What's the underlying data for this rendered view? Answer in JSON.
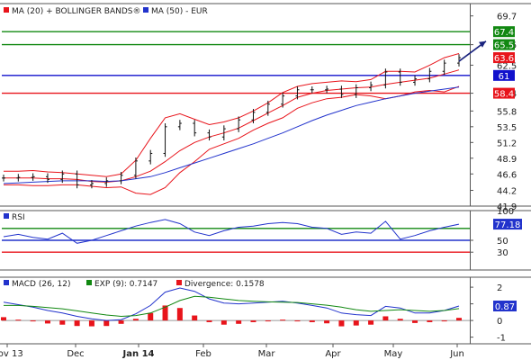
{
  "chart_data": [
    {
      "type": "line",
      "panel": "price",
      "legend": [
        {
          "label": "MA (20) + BOLLINGER BANDS®",
          "color": "#e8141b"
        },
        {
          "label": "MA (50) - EUR",
          "color": "#2233cc"
        }
      ],
      "yticks": [
        69.7,
        65.5,
        62.5,
        58.4,
        55.8,
        53.5,
        51.2,
        48.9,
        46.6,
        44.2,
        41.9
      ],
      "ylim": [
        41.9,
        71.5
      ],
      "levels": [
        {
          "value": 67.4,
          "label": "67.4",
          "color": "#118811"
        },
        {
          "value": 65.5,
          "label": "65.5",
          "color": "#118811"
        },
        {
          "value": 63.6,
          "label": "63.6",
          "color": "#e8141b",
          "kind": "last"
        },
        {
          "value": 61,
          "label": "61",
          "color": "#1111cc"
        },
        {
          "value": 58.4,
          "label": "58.4",
          "color": "#e8141b"
        }
      ],
      "x": [
        "2013-11-01",
        "2013-11-08",
        "2013-11-15",
        "2013-11-22",
        "2013-11-29",
        "2013-12-06",
        "2013-12-13",
        "2013-12-20",
        "2013-12-27",
        "2014-01-03",
        "2014-01-10",
        "2014-01-17",
        "2014-01-24",
        "2014-01-31",
        "2014-02-07",
        "2014-02-14",
        "2014-02-21",
        "2014-02-28",
        "2014-03-07",
        "2014-03-14",
        "2014-03-21",
        "2014-03-28",
        "2014-04-04",
        "2014-04-11",
        "2014-04-18",
        "2014-04-25",
        "2014-05-02",
        "2014-05-09",
        "2014-05-16",
        "2014-05-23",
        "2014-05-30",
        "2014-06-06"
      ],
      "series": [
        {
          "name": "Price",
          "values": [
            46.0,
            46.1,
            46.2,
            45.8,
            46.6,
            45.0,
            45.2,
            45.6,
            46.4,
            48.5,
            49.6,
            53.5,
            54.0,
            52.6,
            52.0,
            53.2,
            54.5,
            55.6,
            56.8,
            58.0,
            58.9,
            58.9,
            59.0,
            58.2,
            59.2,
            59.6,
            61.5,
            60.0,
            60.5,
            61.6,
            62.8,
            63.6
          ]
        },
        {
          "name": "MA (20)",
          "values": [
            46.0,
            46.0,
            46.0,
            45.9,
            45.9,
            45.8,
            45.5,
            45.4,
            45.6,
            46.2,
            47.0,
            48.4,
            50.0,
            51.2,
            52.0,
            52.6,
            53.3,
            54.4,
            55.5,
            56.6,
            57.8,
            58.4,
            58.8,
            59.0,
            59.2,
            59.3,
            59.7,
            60.0,
            60.3,
            60.6,
            61.2,
            61.8
          ]
        },
        {
          "name": "Upper band",
          "values": [
            47.0,
            47.0,
            47.1,
            46.9,
            46.8,
            46.6,
            46.4,
            46.2,
            46.6,
            48.6,
            51.8,
            54.8,
            55.4,
            54.6,
            53.8,
            54.2,
            54.8,
            55.8,
            57.0,
            58.5,
            59.4,
            59.8,
            60.0,
            60.2,
            60.1,
            60.4,
            61.6,
            61.6,
            61.5,
            62.5,
            63.6,
            64.2
          ]
        },
        {
          "name": "Lower band",
          "values": [
            45.0,
            45.0,
            44.9,
            44.9,
            45.0,
            45.0,
            44.8,
            44.6,
            44.7,
            43.8,
            43.6,
            44.6,
            46.8,
            48.4,
            50.2,
            51.0,
            51.8,
            53.0,
            54.0,
            54.8,
            56.2,
            57.0,
            57.6,
            57.8,
            58.2,
            58.0,
            57.6,
            58.0,
            58.6,
            58.8,
            58.6,
            59.4
          ]
        },
        {
          "name": "MA (50)",
          "values": [
            45.2,
            45.3,
            45.4,
            45.5,
            45.6,
            45.6,
            45.6,
            45.5,
            45.6,
            45.9,
            46.2,
            46.8,
            47.5,
            48.2,
            48.9,
            49.6,
            50.3,
            51.0,
            51.8,
            52.6,
            53.5,
            54.4,
            55.2,
            55.9,
            56.6,
            57.1,
            57.6,
            58.0,
            58.4,
            58.7,
            59.0,
            59.3
          ]
        }
      ]
    },
    {
      "type": "line",
      "panel": "rsi",
      "legend": [
        {
          "label": "RSI",
          "color": "#2233cc"
        }
      ],
      "yticks": [
        100,
        50,
        30
      ],
      "ylim": [
        0,
        100
      ],
      "levels": [
        {
          "value": 70,
          "color": "#118811"
        },
        {
          "value": 77.18,
          "label": "77.18",
          "color": "#2233cc",
          "kind": "last"
        },
        {
          "value": 50,
          "label": "50",
          "color": "#2233cc"
        },
        {
          "value": 30,
          "label": "30",
          "color": "#e8141b"
        }
      ],
      "series": [
        {
          "name": "RSI",
          "values": [
            56,
            60,
            55,
            52,
            62,
            45,
            50,
            58,
            66,
            74,
            80,
            85,
            78,
            64,
            58,
            66,
            72,
            74,
            78,
            80,
            78,
            72,
            70,
            60,
            64,
            62,
            82,
            52,
            58,
            66,
            72,
            77.18
          ]
        }
      ]
    },
    {
      "type": "line",
      "panel": "macd",
      "legend": [
        {
          "label": "MACD (26, 12)",
          "color": "#2233cc"
        },
        {
          "label": "EXP (9): 0.7147",
          "color": "#118811"
        },
        {
          "label": "Divergence: 0.1578",
          "color": "#e8141b"
        }
      ],
      "yticks": [
        2,
        1,
        0,
        -1
      ],
      "ylim": [
        -1.4,
        2.6
      ],
      "levels": [
        {
          "value": 0.87,
          "label": "0.87",
          "color": "#2233cc",
          "kind": "last"
        }
      ],
      "series": [
        {
          "name": "MACD",
          "values": [
            1.1,
            0.95,
            0.8,
            0.6,
            0.45,
            0.25,
            0.1,
            0.0,
            0.05,
            0.4,
            0.9,
            1.7,
            1.95,
            1.75,
            1.3,
            1.05,
            1.0,
            1.05,
            1.1,
            1.15,
            1.05,
            0.9,
            0.75,
            0.45,
            0.35,
            0.3,
            0.85,
            0.75,
            0.45,
            0.45,
            0.6,
            0.87
          ]
        },
        {
          "name": "EXP (9)",
          "values": [
            0.9,
            0.9,
            0.85,
            0.78,
            0.7,
            0.58,
            0.45,
            0.33,
            0.25,
            0.3,
            0.45,
            0.8,
            1.2,
            1.45,
            1.4,
            1.3,
            1.2,
            1.15,
            1.12,
            1.1,
            1.08,
            1.0,
            0.92,
            0.8,
            0.65,
            0.55,
            0.6,
            0.65,
            0.6,
            0.55,
            0.6,
            0.7147
          ]
        },
        {
          "name": "Divergence",
          "values": [
            0.2,
            0.05,
            -0.05,
            -0.18,
            -0.25,
            -0.33,
            -0.35,
            -0.33,
            -0.2,
            0.1,
            0.45,
            0.9,
            0.75,
            0.3,
            -0.1,
            -0.25,
            -0.2,
            -0.1,
            -0.02,
            0.05,
            -0.03,
            -0.1,
            -0.17,
            -0.35,
            -0.3,
            -0.25,
            0.25,
            0.1,
            -0.15,
            -0.1,
            0.0,
            0.1578
          ]
        }
      ]
    }
  ],
  "x_axis": {
    "labels": [
      "Nov 13",
      "Dec",
      "Jan 14",
      "Feb",
      "Mar",
      "Apr",
      "May",
      "Jun"
    ]
  }
}
